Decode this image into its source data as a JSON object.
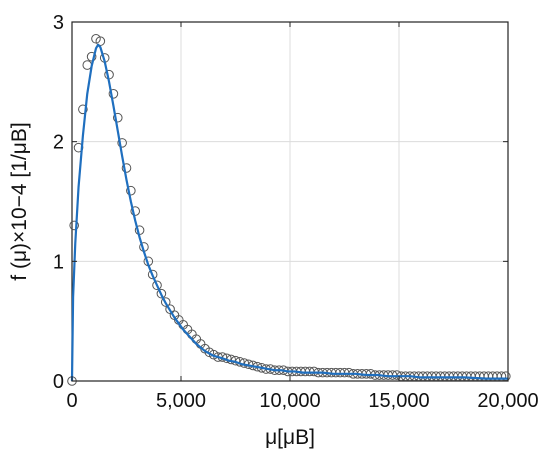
{
  "chart_data": {
    "type": "scatter",
    "xlim": [
      0,
      20000
    ],
    "ylim": [
      0,
      3
    ],
    "x_ticks": [
      0,
      5000,
      10000,
      15000,
      20000
    ],
    "x_tick_labels": [
      "0",
      "5,000",
      "10,000",
      "15,000",
      "20,000"
    ],
    "y_ticks": [
      0,
      1,
      2,
      3
    ],
    "y_tick_labels": [
      "0",
      "1",
      "2",
      "3"
    ],
    "xlabel": "μ[μB]",
    "ylabel": "f (μ)×10−4 [1/μB]",
    "grid": true,
    "line_color": "#1f6fbf",
    "marker_color": "#555555",
    "series": [
      {
        "type": "scatter",
        "x": [
          0,
          100,
          300,
          500,
          700,
          900,
          1100,
          1300,
          1500,
          1700,
          1900,
          2100,
          2300,
          2500,
          2700,
          2900,
          3100,
          3300,
          3500,
          3700,
          3900,
          4100,
          4300,
          4500,
          4700,
          4900,
          5100,
          5300,
          5500,
          5700,
          5900,
          6100,
          6300,
          6500,
          6700,
          6900,
          7100,
          7300,
          7500,
          7700,
          7900,
          8100,
          8300,
          8500,
          8700,
          8900,
          9100,
          9300,
          9500,
          9700,
          9900,
          10100,
          10300,
          10500,
          10700,
          10900,
          11100,
          11300,
          11500,
          11700,
          11900,
          12100,
          12300,
          12500,
          12700,
          12900,
          13100,
          13300,
          13500,
          13700,
          13900,
          14100,
          14300,
          14500,
          14700,
          14900,
          15100,
          15300,
          15500,
          15700,
          15900,
          16100,
          16300,
          16500,
          16700,
          16900,
          17100,
          17300,
          17500,
          17700,
          17900,
          18100,
          18300,
          18500,
          18700,
          18900,
          19100,
          19300,
          19500,
          19700,
          19900
        ],
        "y": [
          0.0,
          1.3,
          1.95,
          2.27,
          2.64,
          2.71,
          2.86,
          2.84,
          2.7,
          2.56,
          2.4,
          2.2,
          1.99,
          1.78,
          1.59,
          1.42,
          1.26,
          1.12,
          1.0,
          0.89,
          0.8,
          0.73,
          0.66,
          0.6,
          0.55,
          0.51,
          0.47,
          0.43,
          0.39,
          0.35,
          0.31,
          0.27,
          0.24,
          0.22,
          0.2,
          0.2,
          0.19,
          0.18,
          0.17,
          0.16,
          0.15,
          0.14,
          0.13,
          0.12,
          0.11,
          0.1,
          0.1,
          0.09,
          0.09,
          0.09,
          0.08,
          0.08,
          0.08,
          0.08,
          0.08,
          0.08,
          0.08,
          0.07,
          0.07,
          0.07,
          0.07,
          0.07,
          0.07,
          0.07,
          0.07,
          0.06,
          0.06,
          0.06,
          0.06,
          0.06,
          0.05,
          0.05,
          0.05,
          0.05,
          0.05,
          0.05,
          0.04,
          0.04,
          0.04,
          0.04,
          0.04,
          0.04,
          0.04,
          0.04,
          0.04,
          0.04,
          0.04,
          0.04,
          0.04,
          0.04,
          0.04,
          0.04,
          0.04,
          0.04,
          0.04,
          0.04,
          0.04,
          0.04,
          0.04,
          0.04,
          0.04
        ]
      },
      {
        "type": "line",
        "x": [
          0,
          50,
          150,
          300,
          500,
          700,
          900,
          1100,
          1200,
          1300,
          1500,
          1700,
          1900,
          2100,
          2300,
          2500,
          2700,
          2900,
          3100,
          3300,
          3500,
          3700,
          3900,
          4100,
          4300,
          4500,
          4700,
          4900,
          5100,
          5300,
          5500,
          5700,
          5900,
          6100,
          6300,
          6500,
          6700,
          6900,
          7200,
          7500,
          7800,
          8100,
          8400,
          8700,
          9000,
          9300,
          9600,
          9900,
          10200,
          10600,
          11000,
          11500,
          12000,
          12500,
          13000,
          13500,
          14000,
          14500,
          15000,
          15500,
          16000,
          17000,
          18000,
          19000,
          20000
        ],
        "y": [
          0.0,
          0.7,
          1.15,
          1.62,
          2.05,
          2.4,
          2.63,
          2.78,
          2.81,
          2.79,
          2.67,
          2.5,
          2.3,
          2.09,
          1.88,
          1.68,
          1.5,
          1.34,
          1.2,
          1.08,
          0.97,
          0.88,
          0.8,
          0.72,
          0.65,
          0.59,
          0.53,
          0.48,
          0.43,
          0.39,
          0.35,
          0.31,
          0.28,
          0.25,
          0.23,
          0.21,
          0.2,
          0.19,
          0.17,
          0.16,
          0.14,
          0.13,
          0.12,
          0.11,
          0.1,
          0.09,
          0.09,
          0.08,
          0.08,
          0.07,
          0.07,
          0.07,
          0.06,
          0.06,
          0.06,
          0.05,
          0.05,
          0.04,
          0.04,
          0.04,
          0.03,
          0.03,
          0.03,
          0.02,
          0.02
        ]
      }
    ]
  }
}
